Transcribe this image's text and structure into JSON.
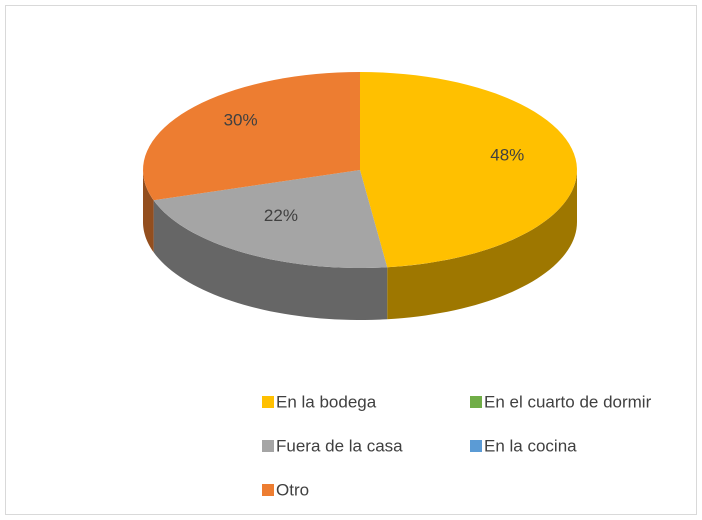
{
  "chart_data": {
    "type": "pie",
    "categories": [
      "En la bodega",
      "En el cuarto de dormir",
      "Fuera de la casa",
      "En la cocina",
      "Otro"
    ],
    "values": [
      48,
      0,
      22,
      0,
      30
    ],
    "value_labels": [
      "48%",
      null,
      "22%",
      null,
      "30%"
    ],
    "colors": [
      "#FFC000",
      "#70AD47",
      "#A5A5A5",
      "#5B9BD5",
      "#ED7D31"
    ],
    "legend": "bottom"
  }
}
